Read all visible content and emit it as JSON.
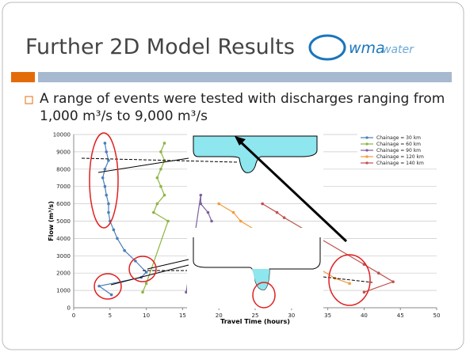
{
  "title": "Further 2D Model Results",
  "logo": "wma",
  "logo_sub": "water",
  "bullet": "A range of events were tested with discharges ranging from 1,000 m³/s to 9,000 m³/s",
  "chart_data": {
    "type": "line",
    "x_label": "Travel Time (hours)",
    "y_label": "Flow (m³/s)",
    "xlim": [
      0,
      50
    ],
    "xticks": [
      0,
      5,
      10,
      15,
      20,
      25,
      30,
      35,
      40,
      45,
      50
    ],
    "ylim": [
      0,
      10000
    ],
    "yticks": [
      0,
      1000,
      2000,
      3000,
      4000,
      5000,
      6000,
      7000,
      8000,
      9000,
      10000
    ],
    "grid": true,
    "legend": "upper right",
    "series": [
      {
        "name": "Chainage = 30 km",
        "color": "#4a7ebb",
        "x": [
          5.2,
          3.5,
          9.3,
          10,
          8.5,
          7,
          6,
          5.5,
          5,
          4.8,
          4.8,
          4.5,
          4.3,
          4,
          4.3,
          4.8,
          4.5,
          4.3
        ],
        "values": [
          750,
          1250,
          1750,
          2050,
          2700,
          3300,
          4000,
          4500,
          5000,
          5500,
          6000,
          6500,
          7000,
          7500,
          8000,
          8500,
          9000,
          9500
        ]
      },
      {
        "name": "Chainage = 60 km",
        "color": "#8db542",
        "x": [
          9.5,
          10,
          13,
          11,
          11.5,
          12.5,
          12,
          11.5,
          12,
          12.5,
          12,
          12.5
        ],
        "values": [
          900,
          1400,
          5000,
          5500,
          6000,
          6500,
          7000,
          7500,
          8000,
          8500,
          9000,
          9500
        ]
      },
      {
        "name": "Chainage = 90 km",
        "color": "#7d5fa0",
        "x": [
          15.5,
          17.5,
          17.5,
          18.5,
          19
        ],
        "values": [
          900,
          6500,
          6000,
          5500,
          5000
        ]
      },
      {
        "name": "Chainage = 120 km",
        "color": "#f59a3a",
        "x": [
          20,
          22,
          23,
          36,
          38
        ],
        "values": [
          6000,
          5500,
          5000,
          1700,
          1400
        ]
      },
      {
        "name": "Chainage = 140 km",
        "color": "#c0504d",
        "x": [
          26,
          28,
          29,
          40,
          42,
          44,
          40
        ],
        "values": [
          6000,
          5500,
          5200,
          2500,
          2000,
          1500,
          900
        ]
      }
    ]
  }
}
